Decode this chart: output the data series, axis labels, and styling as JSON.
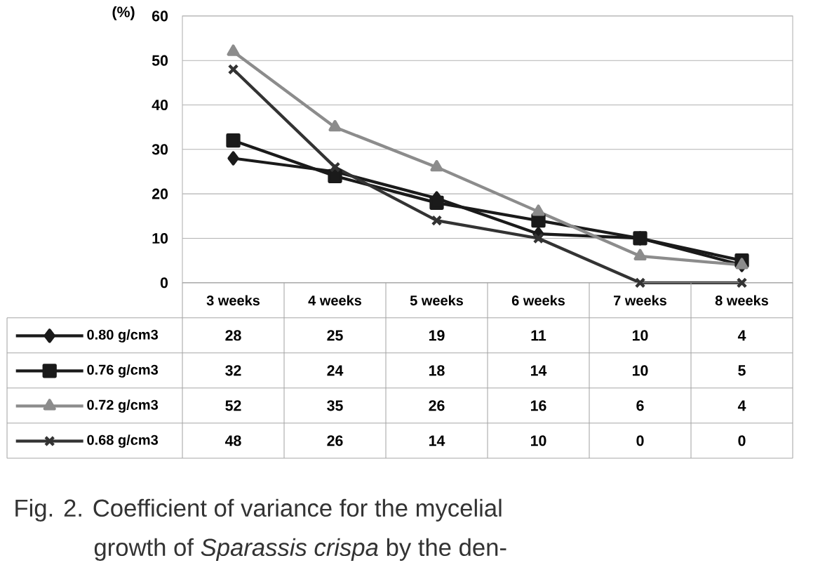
{
  "chart_data": {
    "type": "line",
    "ylabel": "(%)",
    "categories": [
      "3 weeks",
      "4 weeks",
      "5 weeks",
      "6 weeks",
      "7 weeks",
      "8 weeks"
    ],
    "series": [
      {
        "name": "0.80 g/cm3",
        "color": "#1a1a1a",
        "marker": "diamond",
        "values": [
          28,
          25,
          19,
          11,
          10,
          4
        ]
      },
      {
        "name": "0.76 g/cm3",
        "color": "#1a1a1a",
        "marker": "square",
        "values": [
          32,
          24,
          18,
          14,
          10,
          5
        ]
      },
      {
        "name": "0.72 g/cm3",
        "color": "#8c8c8c",
        "marker": "triangle",
        "values": [
          52,
          35,
          26,
          16,
          6,
          4
        ]
      },
      {
        "name": "0.68 g/cm3",
        "color": "#333333",
        "marker": "cross",
        "values": [
          48,
          26,
          14,
          10,
          0,
          0
        ]
      }
    ],
    "ylim": [
      0,
      60
    ],
    "yticks": [
      0,
      10,
      20,
      30,
      40,
      50,
      60
    ],
    "grid": "y",
    "legend": "bottom",
    "data_labels": true,
    "annotations": [
      "Fig. 2. Coefficient of variance for the mycelial",
      "growth of *Sparassis crispa* by the den-"
    ]
  }
}
